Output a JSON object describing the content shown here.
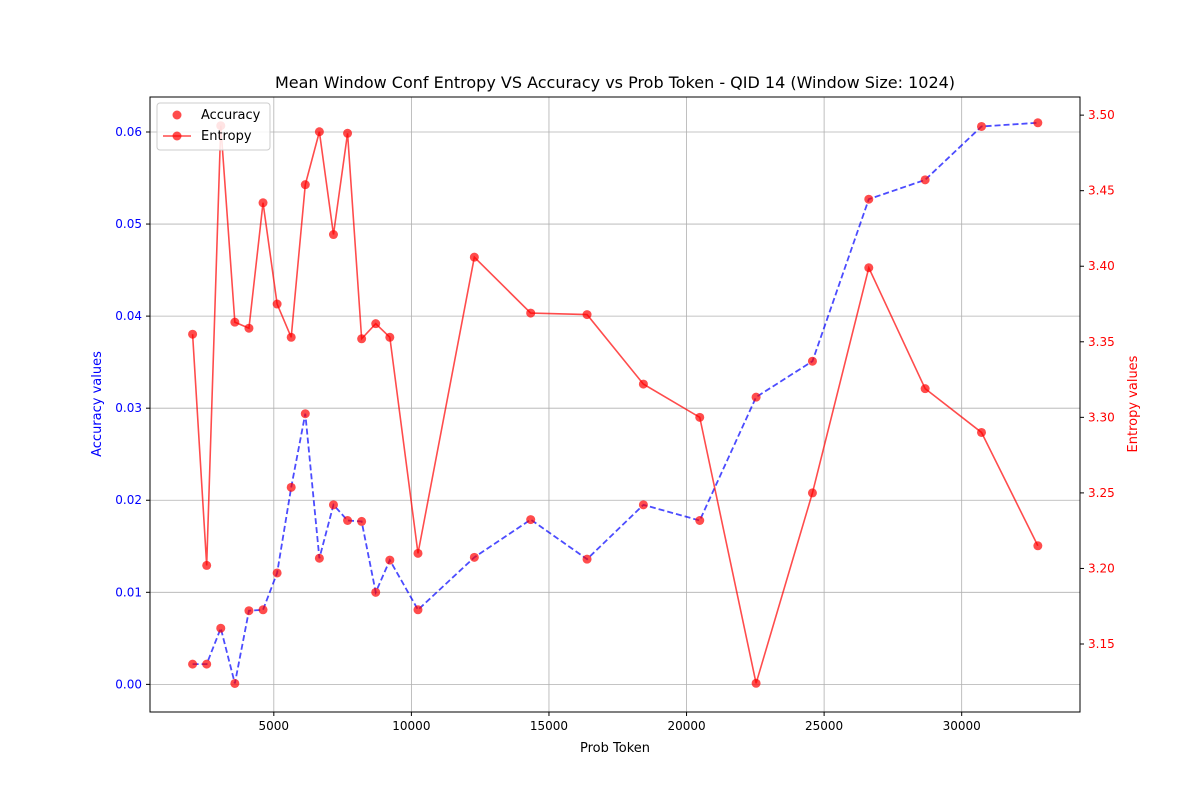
{
  "chart_data": {
    "type": "line",
    "title": "Mean Window Conf Entropy VS Accuracy vs Prob Token - QID 14 (Window Size: 1024)",
    "xlabel": "Prob Token",
    "ylabel_left": "Accuracy values",
    "ylabel_right": "Entropy values",
    "xlim": [
      500,
      34300
    ],
    "ylim_left": [
      -0.003,
      0.0638
    ],
    "ylim_right": [
      3.105,
      3.512
    ],
    "x_ticks": [
      5000,
      10000,
      15000,
      20000,
      25000,
      30000
    ],
    "x_tick_labels": [
      "5000",
      "10000",
      "15000",
      "20000",
      "25000",
      "30000"
    ],
    "y_left_ticks": [
      0.0,
      0.01,
      0.02,
      0.03,
      0.04,
      0.05,
      0.06
    ],
    "y_left_tick_labels": [
      "0.00",
      "0.01",
      "0.02",
      "0.03",
      "0.04",
      "0.05",
      "0.06"
    ],
    "y_right_ticks": [
      3.15,
      3.2,
      3.25,
      3.3,
      3.35,
      3.4,
      3.45,
      3.5
    ],
    "y_right_tick_labels": [
      "3.15",
      "3.20",
      "3.25",
      "3.30",
      "3.35",
      "3.40",
      "3.45",
      "3.50"
    ],
    "grid": true,
    "legend_position": "top-left",
    "legend": [
      {
        "label": "Accuracy",
        "marker": "dot"
      },
      {
        "label": "Entropy",
        "marker": "line-dot"
      }
    ],
    "colors": {
      "accuracy_line": "#0000ff",
      "entropy": "#ff0000",
      "left_axis": "#0000ff",
      "right_axis": "#ff0000",
      "grid": "#b0b0b0"
    },
    "accuracy": {
      "x": [
        2048,
        2560,
        3072,
        3584,
        4096,
        4608,
        5120,
        5632,
        6144,
        6656,
        7168,
        7680,
        8192,
        8704,
        9216,
        10240,
        12288,
        14336,
        16384,
        18432,
        20480,
        22528,
        24576,
        26624,
        28672,
        30720,
        32768
      ],
      "y": [
        0.0022,
        0.0022,
        0.0061,
        0.0001,
        0.008,
        0.0081,
        0.0121,
        0.0214,
        0.0294,
        0.0137,
        0.0195,
        0.0178,
        0.0177,
        0.01,
        0.0135,
        0.0081,
        0.0138,
        0.0179,
        0.0136,
        0.0195,
        0.0178,
        0.0312,
        0.0351,
        0.0527,
        0.0548,
        0.0606,
        0.061
      ]
    },
    "entropy": {
      "x": [
        2048,
        2560,
        3072,
        3584,
        4096,
        4608,
        5120,
        5632,
        6144,
        6656,
        7168,
        7680,
        8192,
        8704,
        9216,
        10240,
        12288,
        14336,
        16384,
        18432,
        20480,
        22528,
        24576,
        26624,
        28672,
        30720,
        32768
      ],
      "y": [
        3.355,
        3.202,
        3.493,
        3.363,
        3.359,
        3.442,
        3.375,
        3.353,
        3.454,
        3.489,
        3.421,
        3.488,
        3.352,
        3.362,
        3.353,
        3.21,
        3.406,
        3.369,
        3.368,
        3.322,
        3.3,
        3.124,
        3.25,
        3.399,
        3.319,
        3.29,
        3.215
      ]
    }
  }
}
